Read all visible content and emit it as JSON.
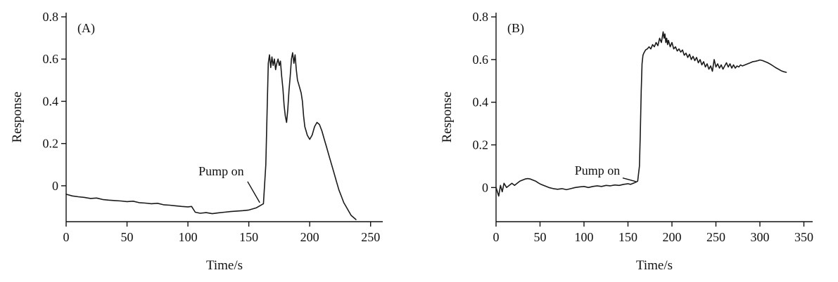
{
  "page": {
    "background": "#ffffff",
    "text_color": "#111111"
  },
  "chart_data": [
    {
      "type": "line",
      "panel_label": "(A)",
      "xlabel": "Time/s",
      "ylabel": "Response",
      "xlim": [
        0,
        260
      ],
      "ylim": [
        -0.17,
        0.82
      ],
      "x_ticks": [
        0,
        50,
        100,
        150,
        200,
        250
      ],
      "x_tick_labels": [
        "0",
        "50",
        "100",
        "150",
        "200",
        "250"
      ],
      "y_ticks": [
        0,
        0.2,
        0.4,
        0.6,
        0.8
      ],
      "y_tick_labels": [
        "0",
        "0.2",
        "0.4",
        "0.6",
        "0.8"
      ],
      "grid": false,
      "legend": "none",
      "line_color": "#1a1a1a",
      "annotation": {
        "label": "Pump on",
        "text_x": 146,
        "text_y": 0.05,
        "line": [
          149,
          0.02,
          159,
          -0.08
        ]
      },
      "points": [
        [
          0,
          -0.04
        ],
        [
          5,
          -0.048
        ],
        [
          10,
          -0.052
        ],
        [
          15,
          -0.055
        ],
        [
          20,
          -0.06
        ],
        [
          25,
          -0.058
        ],
        [
          30,
          -0.065
        ],
        [
          35,
          -0.068
        ],
        [
          40,
          -0.07
        ],
        [
          45,
          -0.072
        ],
        [
          50,
          -0.075
        ],
        [
          55,
          -0.073
        ],
        [
          60,
          -0.08
        ],
        [
          65,
          -0.082
        ],
        [
          70,
          -0.085
        ],
        [
          75,
          -0.083
        ],
        [
          80,
          -0.09
        ],
        [
          85,
          -0.092
        ],
        [
          90,
          -0.095
        ],
        [
          95,
          -0.098
        ],
        [
          100,
          -0.1
        ],
        [
          103,
          -0.098
        ],
        [
          106,
          -0.125
        ],
        [
          110,
          -0.13
        ],
        [
          115,
          -0.127
        ],
        [
          120,
          -0.132
        ],
        [
          125,
          -0.128
        ],
        [
          130,
          -0.125
        ],
        [
          135,
          -0.122
        ],
        [
          140,
          -0.12
        ],
        [
          145,
          -0.118
        ],
        [
          150,
          -0.115
        ],
        [
          153,
          -0.11
        ],
        [
          156,
          -0.105
        ],
        [
          159,
          -0.095
        ],
        [
          162,
          -0.085
        ],
        [
          164,
          0.1
        ],
        [
          165,
          0.35
        ],
        [
          166,
          0.58
        ],
        [
          167,
          0.62
        ],
        [
          168,
          0.56
        ],
        [
          169,
          0.61
        ],
        [
          170,
          0.57
        ],
        [
          171,
          0.6
        ],
        [
          172,
          0.55
        ],
        [
          173,
          0.58
        ],
        [
          174,
          0.6
        ],
        [
          175,
          0.57
        ],
        [
          176,
          0.59
        ],
        [
          177,
          0.52
        ],
        [
          178,
          0.46
        ],
        [
          179,
          0.38
        ],
        [
          180,
          0.33
        ],
        [
          181,
          0.3
        ],
        [
          182,
          0.36
        ],
        [
          183,
          0.45
        ],
        [
          184,
          0.52
        ],
        [
          185,
          0.6
        ],
        [
          186,
          0.63
        ],
        [
          187,
          0.58
        ],
        [
          188,
          0.62
        ],
        [
          189,
          0.55
        ],
        [
          190,
          0.5
        ],
        [
          191,
          0.48
        ],
        [
          192,
          0.46
        ],
        [
          193,
          0.44
        ],
        [
          194,
          0.4
        ],
        [
          195,
          0.33
        ],
        [
          196,
          0.28
        ],
        [
          197,
          0.26
        ],
        [
          198,
          0.24
        ],
        [
          199,
          0.23
        ],
        [
          200,
          0.22
        ],
        [
          202,
          0.24
        ],
        [
          204,
          0.28
        ],
        [
          206,
          0.3
        ],
        [
          208,
          0.29
        ],
        [
          210,
          0.26
        ],
        [
          212,
          0.22
        ],
        [
          214,
          0.18
        ],
        [
          216,
          0.14
        ],
        [
          218,
          0.1
        ],
        [
          220,
          0.06
        ],
        [
          222,
          0.02
        ],
        [
          224,
          -0.02
        ],
        [
          226,
          -0.05
        ],
        [
          228,
          -0.08
        ],
        [
          230,
          -0.1
        ],
        [
          232,
          -0.12
        ],
        [
          234,
          -0.14
        ],
        [
          236,
          -0.15
        ],
        [
          238,
          -0.16
        ]
      ]
    },
    {
      "type": "line",
      "panel_label": "(B)",
      "xlabel": "Time/s",
      "ylabel": "Response",
      "xlim": [
        0,
        360
      ],
      "ylim": [
        -0.16,
        0.82
      ],
      "x_ticks": [
        0,
        50,
        100,
        150,
        200,
        250,
        300,
        350
      ],
      "x_tick_labels": [
        "0",
        "50",
        "100",
        "150",
        "200",
        "250",
        "300",
        "350"
      ],
      "y_ticks": [
        0,
        0.2,
        0.4,
        0.6,
        0.8
      ],
      "y_tick_labels": [
        "0",
        "0.2",
        "0.4",
        "0.6",
        "0.8"
      ],
      "grid": false,
      "legend": "none",
      "line_color": "#1a1a1a",
      "annotation": {
        "label": "Pump on",
        "text_x": 141,
        "text_y": 0.06,
        "line": [
          144,
          0.045,
          159,
          0.028
        ]
      },
      "points": [
        [
          0,
          0.0
        ],
        [
          3,
          -0.04
        ],
        [
          5,
          0.01
        ],
        [
          7,
          -0.02
        ],
        [
          9,
          0.02
        ],
        [
          12,
          0.0
        ],
        [
          15,
          0.01
        ],
        [
          18,
          0.02
        ],
        [
          21,
          0.01
        ],
        [
          24,
          0.02
        ],
        [
          27,
          0.03
        ],
        [
          30,
          0.035
        ],
        [
          33,
          0.04
        ],
        [
          36,
          0.042
        ],
        [
          39,
          0.04
        ],
        [
          42,
          0.035
        ],
        [
          45,
          0.03
        ],
        [
          48,
          0.022
        ],
        [
          51,
          0.015
        ],
        [
          54,
          0.01
        ],
        [
          57,
          0.005
        ],
        [
          60,
          0.0
        ],
        [
          65,
          -0.005
        ],
        [
          70,
          -0.008
        ],
        [
          75,
          -0.005
        ],
        [
          80,
          -0.01
        ],
        [
          85,
          -0.005
        ],
        [
          90,
          0.0
        ],
        [
          95,
          0.003
        ],
        [
          100,
          0.005
        ],
        [
          105,
          0.0
        ],
        [
          110,
          0.005
        ],
        [
          115,
          0.008
        ],
        [
          120,
          0.005
        ],
        [
          125,
          0.01
        ],
        [
          130,
          0.008
        ],
        [
          135,
          0.012
        ],
        [
          140,
          0.01
        ],
        [
          145,
          0.015
        ],
        [
          150,
          0.018
        ],
        [
          153,
          0.015
        ],
        [
          156,
          0.02
        ],
        [
          159,
          0.025
        ],
        [
          161,
          0.03
        ],
        [
          163,
          0.1
        ],
        [
          164,
          0.25
        ],
        [
          165,
          0.45
        ],
        [
          166,
          0.58
        ],
        [
          167,
          0.62
        ],
        [
          168,
          0.63
        ],
        [
          170,
          0.645
        ],
        [
          172,
          0.65
        ],
        [
          174,
          0.66
        ],
        [
          176,
          0.65
        ],
        [
          178,
          0.67
        ],
        [
          180,
          0.66
        ],
        [
          182,
          0.68
        ],
        [
          184,
          0.665
        ],
        [
          186,
          0.7
        ],
        [
          188,
          0.68
        ],
        [
          190,
          0.73
        ],
        [
          191,
          0.7
        ],
        [
          192,
          0.72
        ],
        [
          193,
          0.68
        ],
        [
          194,
          0.7
        ],
        [
          195,
          0.67
        ],
        [
          196,
          0.69
        ],
        [
          198,
          0.66
        ],
        [
          200,
          0.68
        ],
        [
          202,
          0.65
        ],
        [
          204,
          0.66
        ],
        [
          206,
          0.64
        ],
        [
          208,
          0.65
        ],
        [
          210,
          0.635
        ],
        [
          212,
          0.645
        ],
        [
          214,
          0.62
        ],
        [
          216,
          0.63
        ],
        [
          218,
          0.61
        ],
        [
          220,
          0.625
        ],
        [
          222,
          0.6
        ],
        [
          224,
          0.615
        ],
        [
          226,
          0.595
        ],
        [
          228,
          0.61
        ],
        [
          230,
          0.585
        ],
        [
          232,
          0.6
        ],
        [
          234,
          0.575
        ],
        [
          236,
          0.59
        ],
        [
          238,
          0.565
        ],
        [
          240,
          0.58
        ],
        [
          242,
          0.555
        ],
        [
          244,
          0.57
        ],
        [
          246,
          0.545
        ],
        [
          248,
          0.6
        ],
        [
          250,
          0.565
        ],
        [
          252,
          0.58
        ],
        [
          254,
          0.56
        ],
        [
          256,
          0.575
        ],
        [
          258,
          0.555
        ],
        [
          260,
          0.57
        ],
        [
          262,
          0.585
        ],
        [
          264,
          0.565
        ],
        [
          266,
          0.58
        ],
        [
          268,
          0.56
        ],
        [
          270,
          0.575
        ],
        [
          272,
          0.56
        ],
        [
          274,
          0.57
        ],
        [
          276,
          0.565
        ],
        [
          278,
          0.575
        ],
        [
          280,
          0.57
        ],
        [
          283,
          0.575
        ],
        [
          286,
          0.58
        ],
        [
          289,
          0.585
        ],
        [
          292,
          0.59
        ],
        [
          295,
          0.592
        ],
        [
          298,
          0.595
        ],
        [
          300,
          0.598
        ],
        [
          303,
          0.595
        ],
        [
          306,
          0.59
        ],
        [
          309,
          0.585
        ],
        [
          312,
          0.578
        ],
        [
          315,
          0.57
        ],
        [
          318,
          0.562
        ],
        [
          321,
          0.555
        ],
        [
          324,
          0.548
        ],
        [
          327,
          0.543
        ],
        [
          330,
          0.54
        ]
      ]
    }
  ]
}
